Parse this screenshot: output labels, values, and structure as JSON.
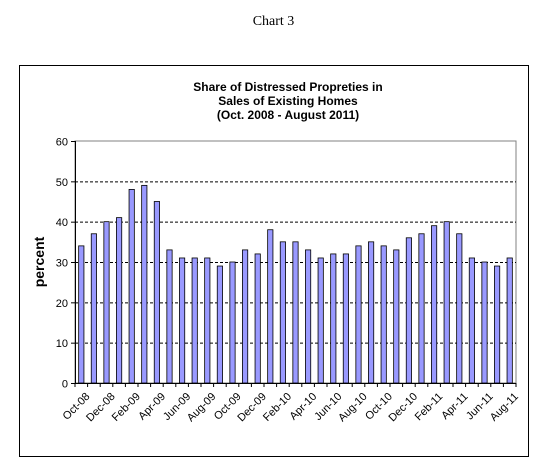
{
  "caption": "Chart 3",
  "chart_data": {
    "type": "bar",
    "title_lines": [
      "Share of Distressed  Propreties  in",
      "Sales of Existing Homes",
      "(Oct. 2008 - August 2011)"
    ],
    "xlabel": "",
    "ylabel": "percent",
    "ylim": [
      0,
      60
    ],
    "y_ticks": [
      0,
      10,
      20,
      30,
      40,
      50,
      60
    ],
    "grid": "horizontal dashed",
    "legend": "none",
    "bar_color": "#9999FF",
    "categories": [
      "Oct-08",
      "Nov-08",
      "Dec-08",
      "Jan-09",
      "Feb-09",
      "Mar-09",
      "Apr-09",
      "May-09",
      "Jun-09",
      "Jul-09",
      "Aug-09",
      "Sep-09",
      "Oct-09",
      "Nov-09",
      "Dec-09",
      "Jan-10",
      "Feb-10",
      "Mar-10",
      "Apr-10",
      "May-10",
      "Jun-10",
      "Jul-10",
      "Aug-10",
      "Sep-10",
      "Oct-10",
      "Nov-10",
      "Dec-10",
      "Jan-11",
      "Feb-11",
      "Mar-11",
      "Apr-11",
      "May-11",
      "Jun-11",
      "Jul-11",
      "Aug-11"
    ],
    "values": [
      34,
      37,
      40,
      41,
      48,
      49,
      45,
      33,
      31,
      31,
      31,
      29,
      30,
      33,
      32,
      38,
      35,
      35,
      33,
      31,
      32,
      32,
      34,
      35,
      34,
      33,
      36,
      37,
      39,
      40,
      37,
      31,
      30,
      29,
      31
    ],
    "visible_x_labels": [
      "Oct-08",
      "Dec-08",
      "Feb-09",
      "Apr-09",
      "Jun-09",
      "Aug-09",
      "Oct-09",
      "Dec-09",
      "Feb-10",
      "Apr-10",
      "Jun-10",
      "Aug-10",
      "Oct-10",
      "Dec-10",
      "Feb-11",
      "Apr-11",
      "Jun-11",
      "Aug-11"
    ]
  }
}
